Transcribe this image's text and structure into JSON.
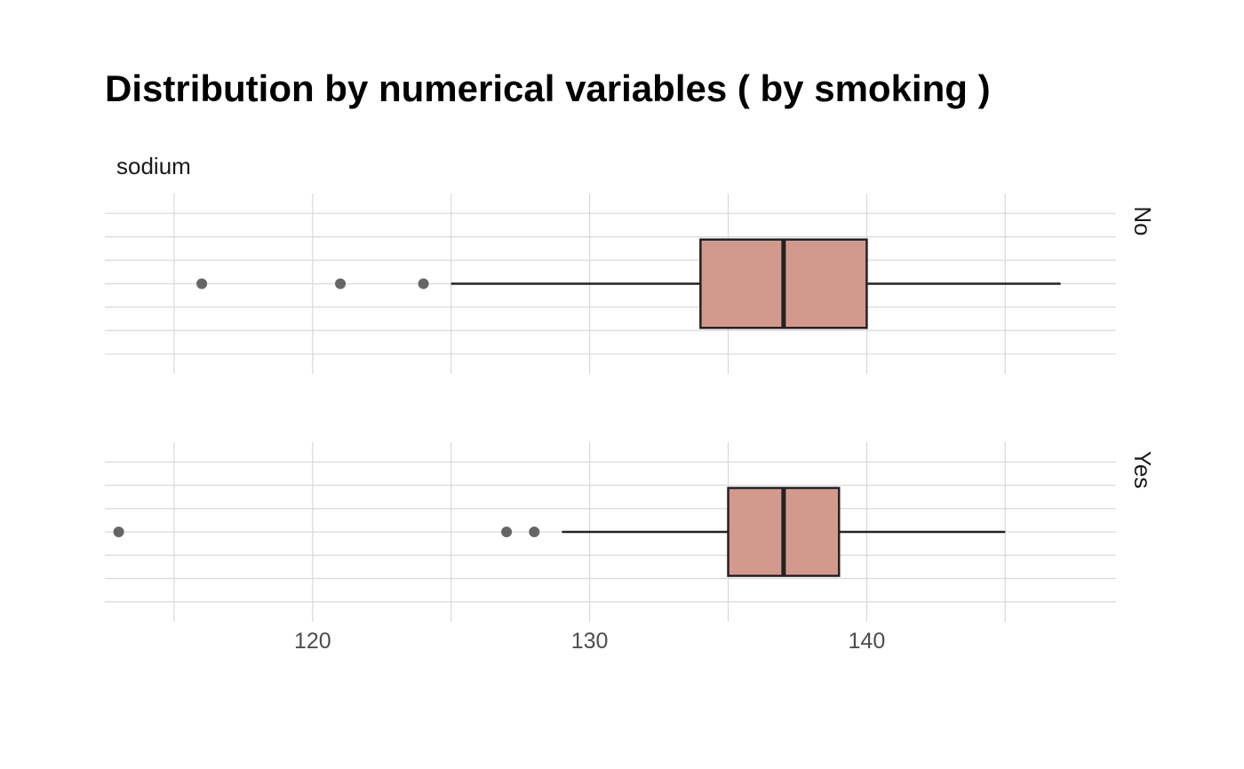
{
  "chart_data": {
    "type": "boxplot",
    "title": "Distribution by numerical variables ( by smoking )",
    "variable": "sodium",
    "facet_variable": "smoking",
    "orientation": "horizontal",
    "xlim": [
      112.5,
      149
    ],
    "x_ticks": [
      120,
      130,
      140
    ],
    "x_minor_ticks": [
      115,
      125,
      135,
      145
    ],
    "grid": true,
    "box_fill": "#d4998d",
    "box_stroke": "#222222",
    "outlier_color": "#555555",
    "grid_color": "#d9d9d9",
    "facets": [
      {
        "label": "No",
        "whisker_low": 125,
        "q1": 134,
        "median": 137,
        "q3": 140,
        "whisker_high": 147,
        "outliers": [
          116,
          121,
          124
        ]
      },
      {
        "label": "Yes",
        "whisker_low": 129,
        "q1": 135,
        "median": 137,
        "q3": 139,
        "whisker_high": 145,
        "outliers": [
          113,
          127,
          128
        ]
      }
    ]
  }
}
